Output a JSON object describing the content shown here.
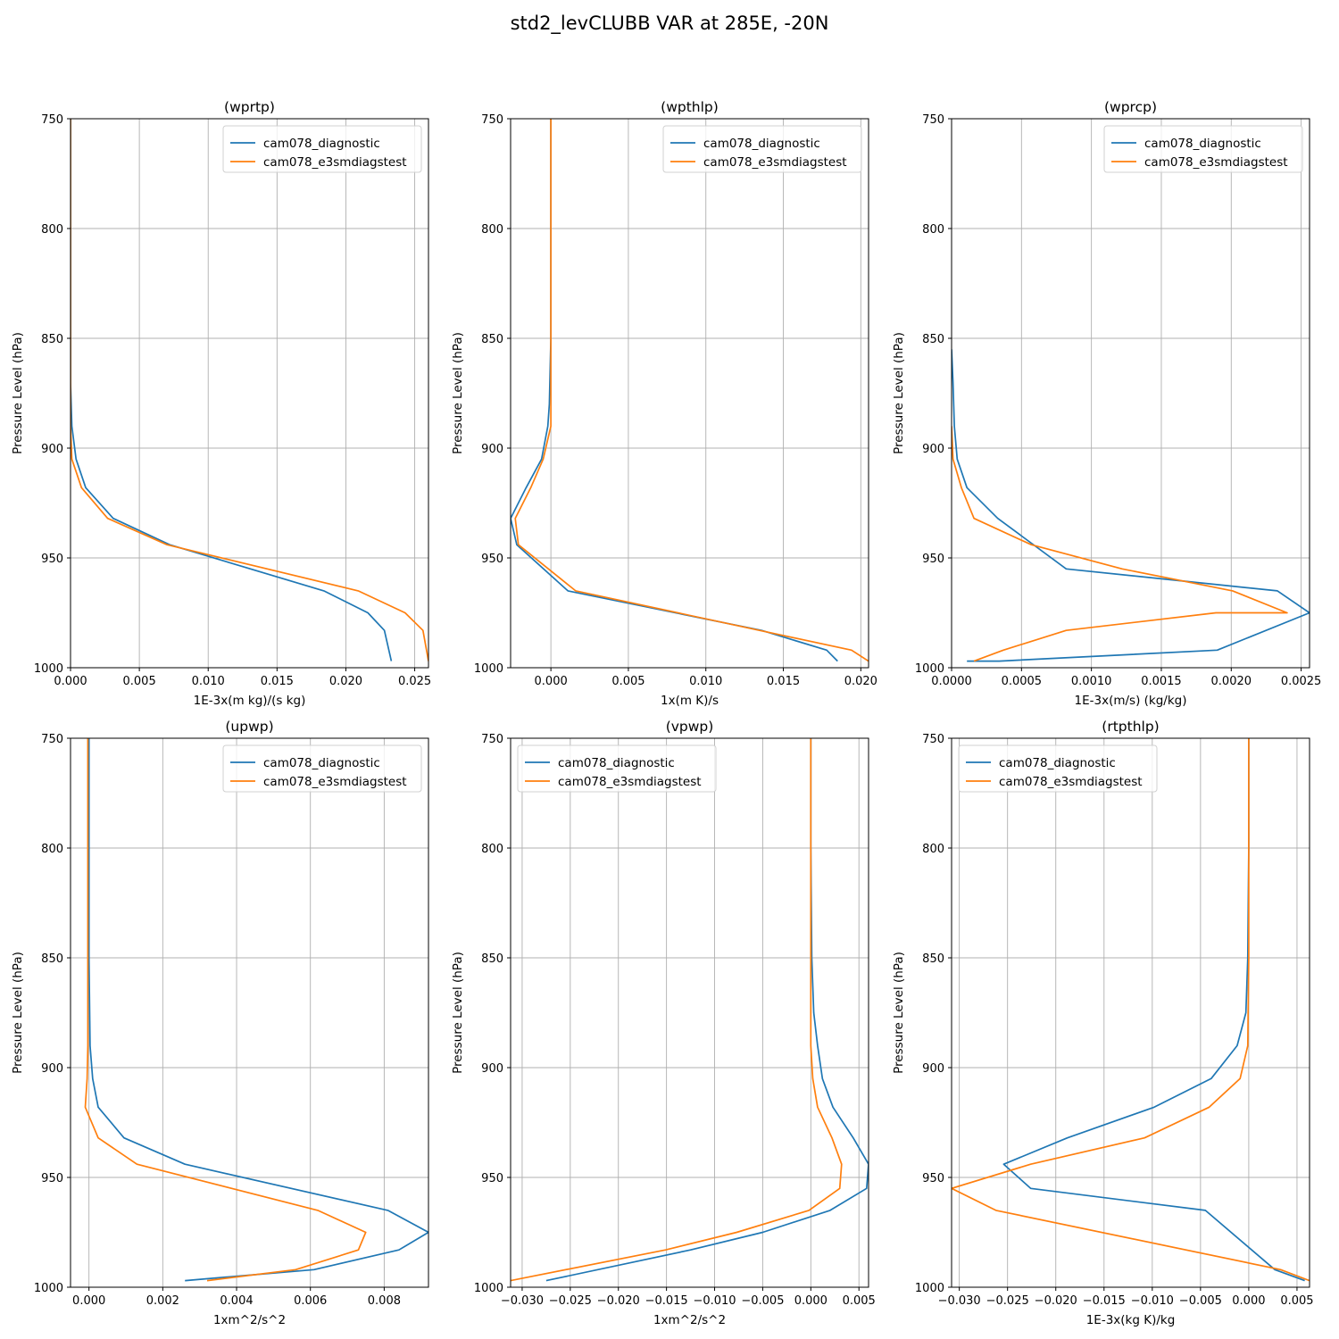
{
  "suptitle": "std2_levCLUBB VAR at 285E, -20N",
  "colors": {
    "series0": "#1f77b4",
    "series1": "#ff7f0e",
    "grid": "#b0b0b0"
  },
  "chart_data": [
    {
      "type": "line",
      "title": "(wprtp)",
      "xlabel": "1E-3x(m kg)/(s kg)",
      "ylabel": "Pressure Level (hPa)",
      "xlim": [
        0,
        0.026
      ],
      "ylim": [
        1000,
        750
      ],
      "xticks": [
        0,
        0.005,
        0.01,
        0.015,
        0.02,
        0.025
      ],
      "xtick_labels": [
        "0.000",
        "0.005",
        "0.010",
        "0.015",
        "0.020",
        "0.025"
      ],
      "yticks": [
        750,
        800,
        850,
        900,
        950,
        1000
      ],
      "ytick_labels": [
        "750",
        "800",
        "850",
        "900",
        "950",
        "1000"
      ],
      "grid": true,
      "legend_position": "top-right",
      "series": [
        {
          "name": "cam078_diagnostic",
          "x": [
            0,
            0,
            0,
            0,
            0.0001,
            0.0004,
            0.0011,
            0.0031,
            0.0072,
            0.0184,
            0.0216,
            0.0228,
            0.0233
          ],
          "y": [
            750,
            800,
            850,
            870,
            890,
            905,
            918,
            932,
            944,
            965,
            975,
            983,
            997
          ]
        },
        {
          "name": "cam078_e3smdiagstest",
          "x": [
            0,
            0,
            0,
            0,
            0.0001,
            0.0008,
            0.0027,
            0.007,
            0.0209,
            0.0243,
            0.0256,
            0.026
          ],
          "y": [
            750,
            800,
            850,
            890,
            905,
            918,
            932,
            944,
            965,
            975,
            983,
            997
          ]
        }
      ]
    },
    {
      "type": "line",
      "title": "(wpthlp)",
      "xlabel": "1x(m K)/s",
      "ylabel": "Pressure Level (hPa)",
      "xlim": [
        -0.0026,
        0.0205
      ],
      "ylim": [
        1000,
        750
      ],
      "xticks": [
        0,
        0.005,
        0.01,
        0.015,
        0.02
      ],
      "xtick_labels": [
        "0.000",
        "0.005",
        "0.010",
        "0.015",
        "0.020"
      ],
      "yticks": [
        750,
        800,
        850,
        900,
        950,
        1000
      ],
      "ytick_labels": [
        "750",
        "800",
        "850",
        "900",
        "950",
        "1000"
      ],
      "grid": true,
      "legend_position": "top-right",
      "series": [
        {
          "name": "cam078_diagnostic",
          "x": [
            0,
            0,
            0,
            -0.0001,
            -0.0002,
            -0.0006,
            -0.0016,
            -0.0026,
            -0.0022,
            0.0011,
            0.0136,
            0.0178,
            0.0185
          ],
          "y": [
            750,
            800,
            850,
            880,
            890,
            905,
            918,
            932,
            944,
            965,
            983,
            992,
            997
          ]
        },
        {
          "name": "cam078_e3smdiagstest",
          "x": [
            0,
            0,
            0,
            0,
            -0.0005,
            -0.0013,
            -0.0023,
            -0.0021,
            0.0016,
            0.0194,
            0.0205
          ],
          "y": [
            750,
            800,
            850,
            890,
            905,
            918,
            932,
            944,
            965,
            992,
            997
          ]
        }
      ]
    },
    {
      "type": "line",
      "title": "(wprcp)",
      "xlabel": "1E-3x(m/s) (kg/kg)",
      "ylabel": "Pressure Level (hPa)",
      "xlim": [
        0,
        0.00256
      ],
      "ylim": [
        1000,
        750
      ],
      "xticks": [
        0,
        0.0005,
        0.001,
        0.0015,
        0.002,
        0.0025
      ],
      "xtick_labels": [
        "0.0000",
        "0.0005",
        "0.0010",
        "0.0015",
        "0.0020",
        "0.0025"
      ],
      "yticks": [
        750,
        800,
        850,
        900,
        950,
        1000
      ],
      "ytick_labels": [
        "750",
        "800",
        "850",
        "900",
        "950",
        "1000"
      ],
      "grid": true,
      "legend_position": "top-right",
      "series": [
        {
          "name": "cam078_diagnostic",
          "x": [
            0,
            1e-05,
            2e-05,
            4e-05,
            0.00011,
            0.00033,
            0.00082,
            0.00233,
            0.00256,
            0.0019,
            0.00034,
            0.00011
          ],
          "y": [
            855,
            870,
            890,
            905,
            918,
            932,
            955,
            965,
            975,
            992,
            997,
            997
          ]
        },
        {
          "name": "cam078_e3smdiagstest",
          "x": [
            0,
            1e-05,
            7e-05,
            0.00016,
            0.00057,
            0.00122,
            0.00201,
            0.0024,
            0.00189,
            0.00082,
            0.00037,
            0.00016
          ],
          "y": [
            890,
            905,
            918,
            932,
            944,
            955,
            965,
            975,
            975,
            983,
            992,
            997
          ]
        }
      ]
    },
    {
      "type": "line",
      "title": "(upwp)",
      "xlabel": "1xm^2/s^2",
      "ylabel": "Pressure Level (hPa)",
      "xlim": [
        -0.0005,
        0.0092
      ],
      "ylim": [
        1000,
        750
      ],
      "xticks": [
        0,
        0.002,
        0.004,
        0.006,
        0.008
      ],
      "xtick_labels": [
        "0.000",
        "0.002",
        "0.004",
        "0.006",
        "0.008"
      ],
      "yticks": [
        750,
        800,
        850,
        900,
        950,
        1000
      ],
      "ytick_labels": [
        "750",
        "800",
        "850",
        "900",
        "950",
        "1000"
      ],
      "grid": true,
      "legend_position": "top-right",
      "series": [
        {
          "name": "cam078_diagnostic",
          "x": [
            0,
            0,
            0,
            3e-05,
            0.0001,
            0.00025,
            0.00095,
            0.0026,
            0.0081,
            0.0092,
            0.0084,
            0.0061,
            0.0026
          ],
          "y": [
            750,
            800,
            850,
            890,
            905,
            918,
            932,
            944,
            965,
            975,
            983,
            992,
            997
          ]
        },
        {
          "name": "cam078_e3smdiagstest",
          "x": [
            -3e-05,
            -3e-05,
            -3e-05,
            -3e-05,
            -5e-05,
            -0.0001,
            0.00025,
            0.0013,
            0.0062,
            0.0075,
            0.0073,
            0.0056,
            0.0032
          ],
          "y": [
            750,
            800,
            850,
            890,
            905,
            918,
            932,
            944,
            965,
            975,
            983,
            992,
            997
          ]
        }
      ]
    },
    {
      "type": "line",
      "title": "(vpwp)",
      "xlabel": "1xm^2/s^2",
      "ylabel": "Pressure Level (hPa)",
      "xlim": [
        -0.0312,
        0.006
      ],
      "ylim": [
        1000,
        750
      ],
      "xticks": [
        -0.03,
        -0.025,
        -0.02,
        -0.015,
        -0.01,
        -0.005,
        0,
        0.005
      ],
      "xtick_labels": [
        "−0.030",
        "−0.025",
        "−0.020",
        "−0.015",
        "−0.010",
        "−0.005",
        "0.000",
        "0.005"
      ],
      "yticks": [
        750,
        800,
        850,
        900,
        950,
        1000
      ],
      "ytick_labels": [
        "750",
        "800",
        "850",
        "900",
        "950",
        "1000"
      ],
      "grid": true,
      "legend_position": "top-left",
      "series": [
        {
          "name": "cam078_diagnostic",
          "x": [
            0,
            0,
            0.0001,
            0.0003,
            0.0007,
            0.0012,
            0.0023,
            0.0044,
            0.006,
            0.0058,
            0.002,
            -0.005,
            -0.0125,
            -0.0275
          ],
          "y": [
            750,
            800,
            850,
            875,
            890,
            905,
            918,
            932,
            944,
            955,
            965,
            975,
            983,
            997
          ]
        },
        {
          "name": "cam078_e3smdiagstest",
          "x": [
            0,
            0,
            0,
            0,
            0.0002,
            0.0007,
            0.0022,
            0.0032,
            0.003,
            -0.0002,
            -0.0077,
            -0.0151,
            -0.0312
          ],
          "y": [
            750,
            800,
            850,
            890,
            905,
            918,
            932,
            944,
            955,
            965,
            975,
            983,
            997
          ]
        }
      ]
    },
    {
      "type": "line",
      "title": "(rtpthlp)",
      "xlabel": "1E-3x(kg K)/kg",
      "ylabel": "Pressure Level (hPa)",
      "xlim": [
        -0.0308,
        0.0063
      ],
      "ylim": [
        1000,
        750
      ],
      "xticks": [
        -0.03,
        -0.025,
        -0.02,
        -0.015,
        -0.01,
        -0.005,
        0,
        0.005
      ],
      "xtick_labels": [
        "−0.030",
        "−0.025",
        "−0.020",
        "−0.015",
        "−0.010",
        "−0.005",
        "0.000",
        "0.005"
      ],
      "yticks": [
        750,
        800,
        850,
        900,
        950,
        1000
      ],
      "ytick_labels": [
        "750",
        "800",
        "850",
        "900",
        "950",
        "1000"
      ],
      "grid": true,
      "legend_position": "top-left",
      "series": [
        {
          "name": "cam078_diagnostic",
          "x": [
            0,
            0,
            -0.0001,
            -0.0003,
            -0.0012,
            -0.0039,
            -0.0098,
            -0.0188,
            -0.0254,
            -0.0226,
            -0.0045,
            0.0027,
            0.0058
          ],
          "y": [
            750,
            800,
            850,
            875,
            890,
            905,
            918,
            932,
            944,
            955,
            965,
            992,
            997
          ]
        },
        {
          "name": "cam078_e3smdiagstest",
          "x": [
            0,
            0,
            0,
            -0.0001,
            -0.0009,
            -0.0041,
            -0.0108,
            -0.0226,
            -0.0308,
            -0.0262,
            0.0033,
            0.0063
          ],
          "y": [
            750,
            800,
            850,
            890,
            905,
            918,
            932,
            944,
            955,
            965,
            992,
            997
          ]
        }
      ]
    }
  ]
}
